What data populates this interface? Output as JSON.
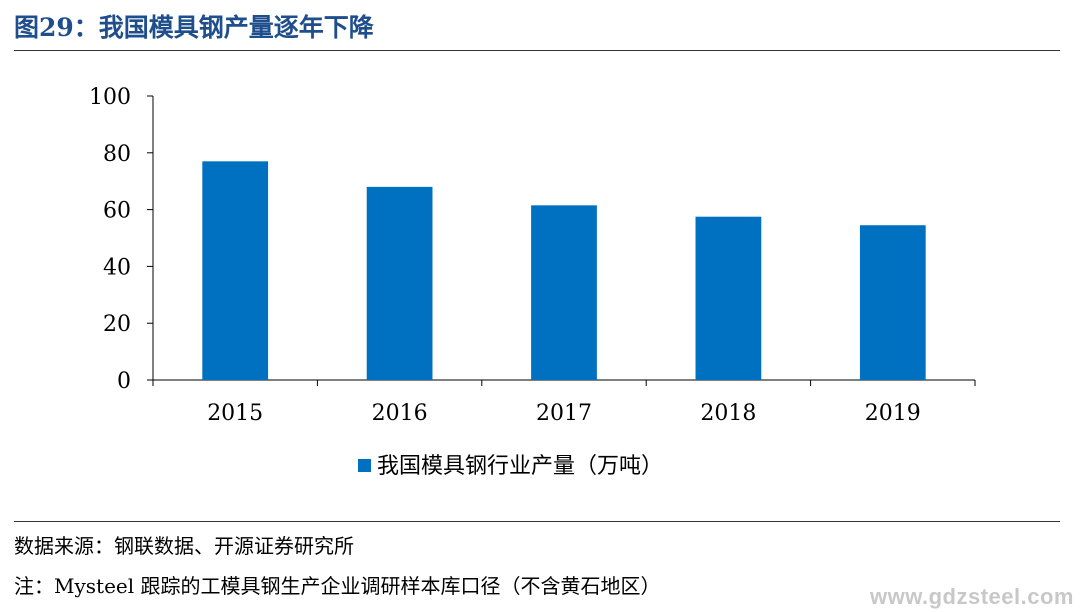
{
  "header": {
    "title": "图29：我国模具钢产量逐年下降"
  },
  "chart_data": {
    "type": "bar",
    "title": "",
    "categories": [
      "2015",
      "2016",
      "2017",
      "2018",
      "2019"
    ],
    "series": [
      {
        "name": "我国模具钢行业产量（万吨）",
        "values": [
          77,
          68,
          61.5,
          57.5,
          54.5
        ],
        "color": "#0070c0"
      }
    ],
    "xlabel": "",
    "ylabel": "",
    "ylim": [
      0,
      100
    ],
    "yticks": [
      "0",
      "20",
      "40",
      "60",
      "80",
      "100"
    ],
    "grid": false,
    "legend_position": "bottom"
  },
  "footer": {
    "source": "数据来源：钢联数据、开源证券研究所",
    "note": "注：Mysteel 跟踪的工模具钢生产企业调研样本库口径（不含黄石地区）"
  },
  "watermark": "www.gdzsteel.com"
}
